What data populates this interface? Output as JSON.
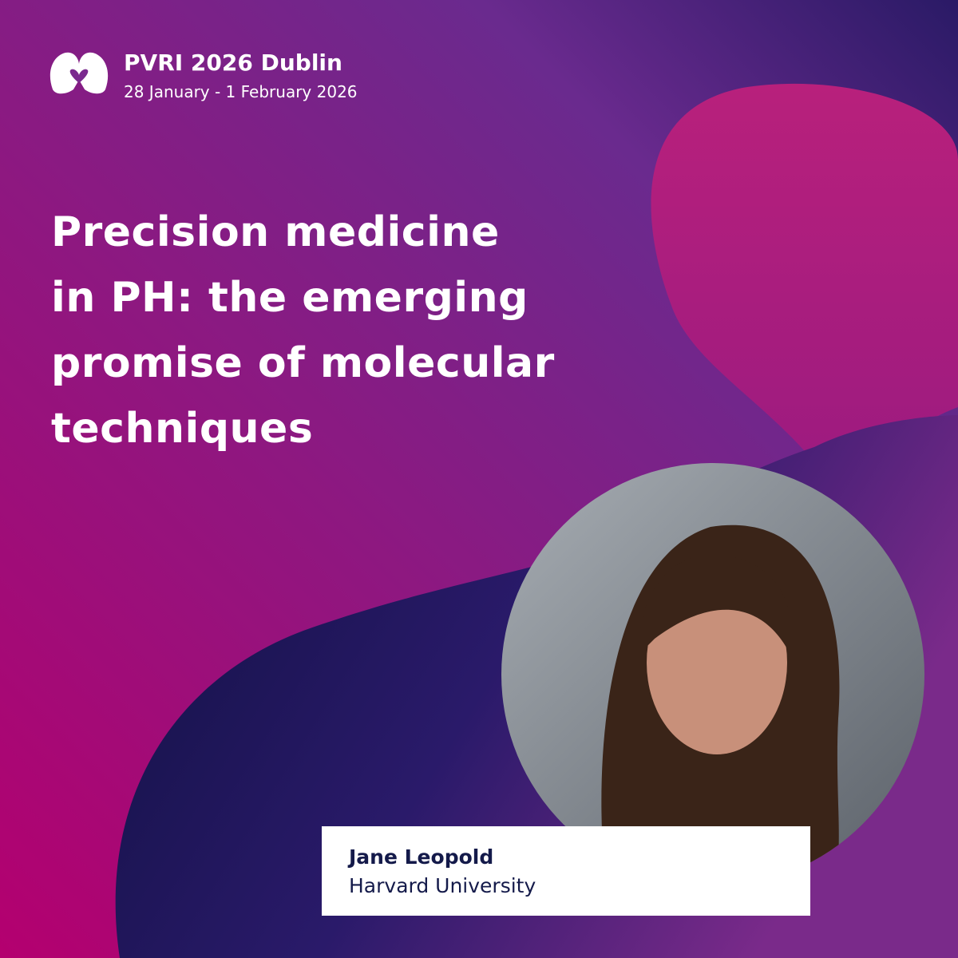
{
  "header": {
    "title": "PVRI 2026 Dublin",
    "date": "28 January - 1 February 2026"
  },
  "session": {
    "title_lines": [
      "Precision medicine",
      "in PH: the emerging",
      "promise of molecular",
      "techniques"
    ]
  },
  "speaker": {
    "name": "Jane Leopold",
    "affiliation": "Harvard University"
  }
}
